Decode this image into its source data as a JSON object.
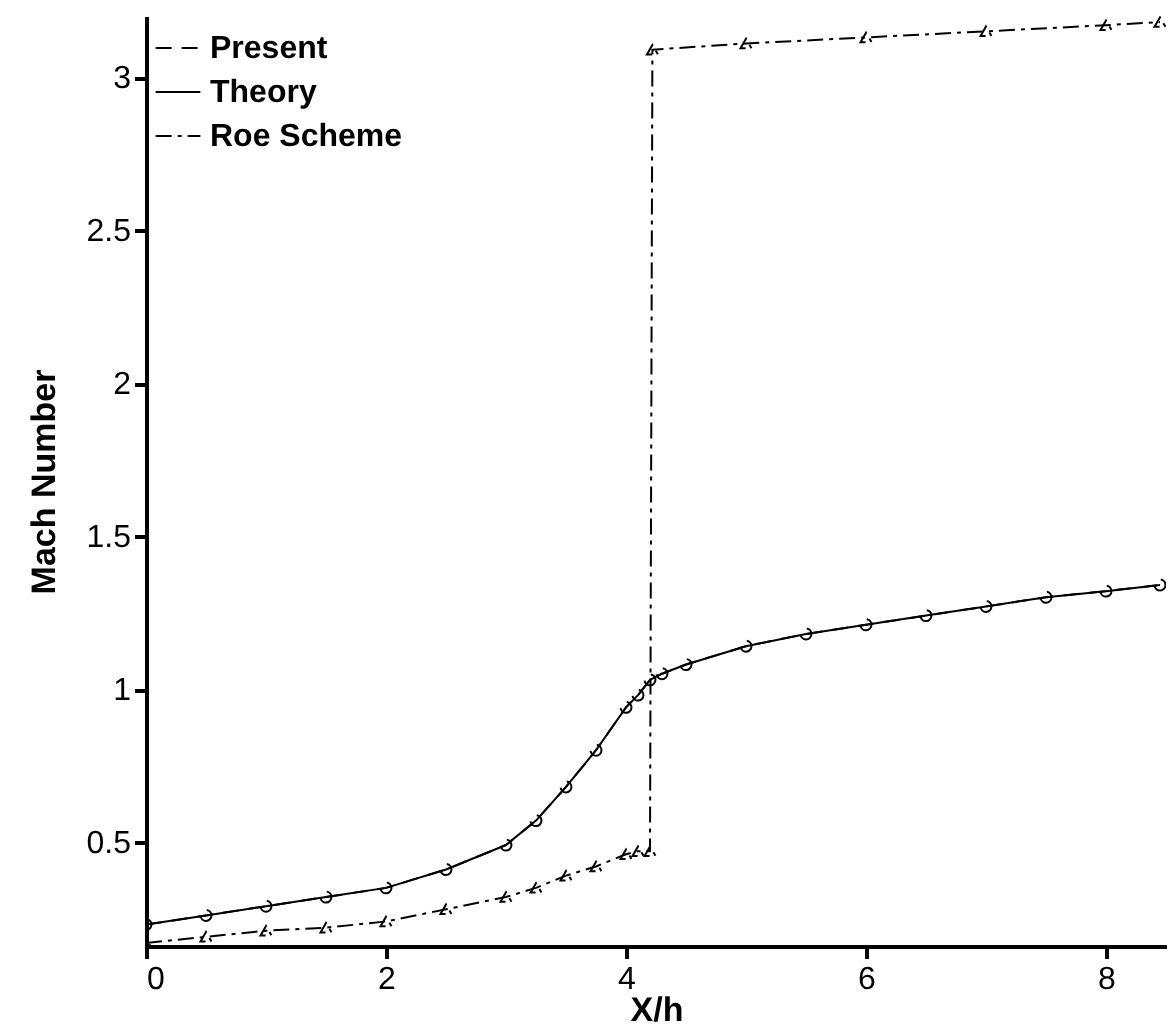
{
  "chart_data": {
    "type": "line",
    "xlabel": "X/h",
    "ylabel": "Mach Number",
    "xlim": [
      0,
      8.5
    ],
    "ylim": [
      0.16,
      3.2
    ],
    "xticks": [
      0,
      2,
      4,
      6,
      8
    ],
    "yticks": [
      0.5,
      1,
      1.5,
      2,
      2.5,
      3
    ],
    "legend": "top left",
    "grid": false,
    "series": [
      {
        "name": "Present",
        "color": "#000000",
        "marker": "circle",
        "line_style": "dashed",
        "x": [
          0,
          0.5,
          1,
          1.5,
          2,
          2.5,
          3,
          3.25,
          3.5,
          3.75,
          4,
          4.1,
          4.2,
          4.3,
          4.5,
          5,
          5.5,
          6,
          6.5,
          7,
          7.5,
          8,
          8.45
        ],
        "values": [
          0.23,
          0.26,
          0.29,
          0.32,
          0.35,
          0.41,
          0.49,
          0.57,
          0.68,
          0.8,
          0.94,
          0.98,
          1.03,
          1.05,
          1.08,
          1.14,
          1.18,
          1.21,
          1.24,
          1.27,
          1.3,
          1.32,
          1.34
        ]
      },
      {
        "name": "Theory",
        "color": "#000000",
        "marker": "none",
        "line_style": "solid",
        "x": [
          0,
          0.5,
          1,
          1.5,
          2,
          2.5,
          3,
          3.25,
          3.5,
          3.75,
          4,
          4.1,
          4.2,
          4.3,
          4.5,
          5,
          5.5,
          6,
          6.5,
          7,
          7.5,
          8,
          8.45
        ],
        "values": [
          0.23,
          0.26,
          0.29,
          0.32,
          0.35,
          0.41,
          0.49,
          0.57,
          0.68,
          0.8,
          0.94,
          0.98,
          1.03,
          1.05,
          1.08,
          1.14,
          1.18,
          1.21,
          1.24,
          1.27,
          1.3,
          1.32,
          1.34
        ]
      },
      {
        "name": "Roe Scheme",
        "color": "#000000",
        "marker": "triangle",
        "line_style": "dashdot",
        "x": [
          0,
          0.5,
          1,
          1.5,
          2,
          2.5,
          3,
          3.25,
          3.5,
          3.75,
          4,
          4.1,
          4.2,
          4.22,
          5,
          6,
          7,
          8,
          8.45
        ],
        "values": [
          0.17,
          0.19,
          0.21,
          0.22,
          0.24,
          0.28,
          0.32,
          0.35,
          0.39,
          0.42,
          0.46,
          0.47,
          0.47,
          3.09,
          3.11,
          3.13,
          3.15,
          3.17,
          3.18
        ]
      }
    ]
  }
}
